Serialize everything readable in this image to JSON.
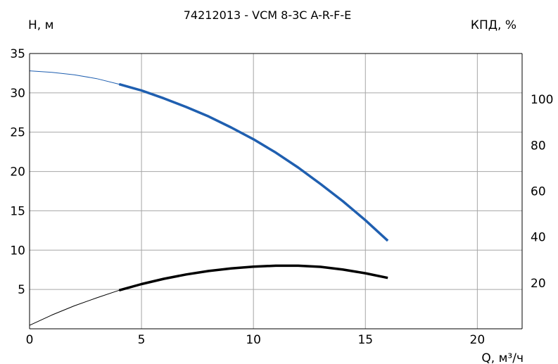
{
  "chart_data": {
    "type": "line",
    "title": "74212013 - VCM 8-3C A-R-F-E",
    "ylabel_left": "H, м",
    "ylabel_right": "КПД, %",
    "xlabel": "Q, м³/ч",
    "xlim": [
      0,
      22
    ],
    "ylim_left": [
      0,
      35
    ],
    "ylim_right": [
      0,
      120
    ],
    "x_ticks": [
      0,
      5,
      10,
      15,
      20
    ],
    "y_left_ticks": [
      5,
      10,
      15,
      20,
      25,
      30,
      35
    ],
    "y_right_ticks": [
      20,
      40,
      60,
      80,
      100
    ],
    "grid": true,
    "colors": {
      "head": "#1f5fb0",
      "efficiency": "#000000",
      "grid": "#a6a6a6",
      "axis": "#000000"
    },
    "series": [
      {
        "id": "head",
        "axis": "left",
        "color": "#1f5fb0",
        "operating_range": [
          4,
          16
        ],
        "x": [
          0,
          1,
          2,
          3,
          4,
          5,
          6,
          7,
          8,
          9,
          10,
          11,
          12,
          13,
          14,
          15,
          16
        ],
        "y": [
          32.8,
          32.6,
          32.3,
          31.8,
          31.1,
          30.3,
          29.3,
          28.2,
          27.0,
          25.6,
          24.1,
          22.4,
          20.5,
          18.4,
          16.2,
          13.8,
          11.2
        ]
      },
      {
        "id": "efficiency",
        "axis": "right",
        "color": "#000000",
        "operating_range": [
          4,
          16
        ],
        "x": [
          0,
          1,
          2,
          3,
          4,
          5,
          6,
          7,
          8,
          9,
          10,
          11,
          12,
          13,
          14,
          15,
          16
        ],
        "y": [
          1.5,
          6.0,
          10.0,
          13.5,
          16.8,
          19.5,
          21.8,
          23.7,
          25.2,
          26.3,
          27.1,
          27.5,
          27.5,
          27.0,
          25.8,
          24.2,
          22.2
        ]
      }
    ]
  }
}
